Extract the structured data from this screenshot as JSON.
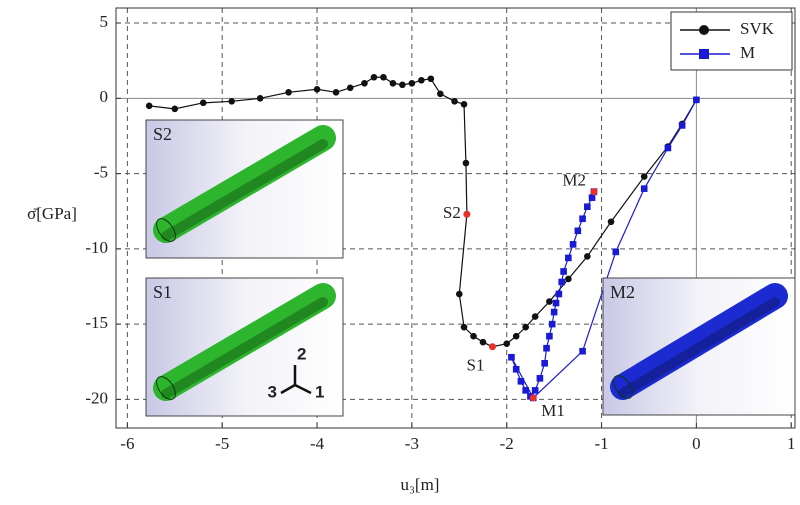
{
  "chart_data": {
    "type": "line",
    "x_label": "u₃[m]",
    "y_label": "σ̄[GPa]",
    "xlim": [
      -6.12,
      1.04
    ],
    "ylim": [
      -21.9,
      6
    ],
    "xticks": [
      -6,
      -5,
      -4,
      -3,
      -2,
      -1,
      0,
      1
    ],
    "yticks": [
      -20,
      -15,
      -10,
      -5,
      0,
      5
    ],
    "grid": true,
    "legend": "top-right",
    "series": [
      {
        "name": "SVK",
        "color": "#111111",
        "marker": "circle",
        "x": [
          -5.77,
          -5.5,
          -5.2,
          -4.9,
          -4.6,
          -4.3,
          -4.0,
          -3.8,
          -3.65,
          -3.5,
          -3.4,
          -3.3,
          -3.2,
          -3.1,
          -3.0,
          -2.9,
          -2.8,
          -2.7,
          -2.55,
          -2.45,
          -2.43,
          -2.42,
          -2.5,
          -2.45,
          -2.35,
          -2.25,
          -2.15,
          -2.0,
          -1.9,
          -1.8,
          -1.7,
          -1.55,
          -1.35,
          -1.15,
          -0.9,
          -0.55,
          -0.3,
          -0.15,
          0.0
        ],
        "values": [
          -0.5,
          -0.7,
          -0.3,
          -0.2,
          0.0,
          0.4,
          0.6,
          0.4,
          0.7,
          1.0,
          1.4,
          1.4,
          1.0,
          0.9,
          1.0,
          1.2,
          1.3,
          0.3,
          -0.2,
          -0.4,
          -4.3,
          -7.7,
          -13.0,
          -15.2,
          -15.8,
          -16.2,
          -16.5,
          -16.3,
          -15.8,
          -15.2,
          -14.5,
          -13.5,
          -12.0,
          -10.5,
          -8.2,
          -5.2,
          -3.2,
          -1.7,
          -0.1
        ]
      },
      {
        "name": "M",
        "color": "#1a1ad6",
        "marker": "square",
        "x": [
          0.0,
          -0.15,
          -0.3,
          -0.55,
          -0.85,
          -1.2,
          -1.72,
          -1.95,
          -1.9,
          -1.85,
          -1.8,
          -1.75,
          -1.7,
          -1.65,
          -1.6,
          -1.58,
          -1.55,
          -1.52,
          -1.5,
          -1.48,
          -1.45,
          -1.42,
          -1.4,
          -1.35,
          -1.3,
          -1.25,
          -1.2,
          -1.15,
          -1.1,
          -1.08
        ],
        "values": [
          -0.1,
          -1.8,
          -3.3,
          -6.0,
          -10.2,
          -16.8,
          -19.9,
          -17.2,
          -18.0,
          -18.8,
          -19.4,
          -19.8,
          -19.4,
          -18.6,
          -17.6,
          -16.6,
          -15.8,
          -15.0,
          -14.2,
          -13.6,
          -13.0,
          -12.2,
          -11.5,
          -10.6,
          -9.7,
          -8.8,
          -8.0,
          -7.2,
          -6.6,
          -6.2
        ]
      }
    ],
    "points": [
      {
        "label": "S1",
        "x": -2.15,
        "y": -16.5
      },
      {
        "label": "S2",
        "x": -2.42,
        "y": -7.7
      },
      {
        "label": "M1",
        "x": -1.72,
        "y": -19.9
      },
      {
        "label": "M2",
        "x": -1.08,
        "y": -6.2
      }
    ],
    "point_color": "#e8312a",
    "insets": [
      {
        "label": "S2",
        "color": "#2db52d"
      },
      {
        "label": "S1",
        "color": "#2db52d"
      },
      {
        "label": "M2",
        "color": "#1c2bd1"
      }
    ],
    "triad_labels": [
      "2",
      "3",
      "1"
    ]
  }
}
